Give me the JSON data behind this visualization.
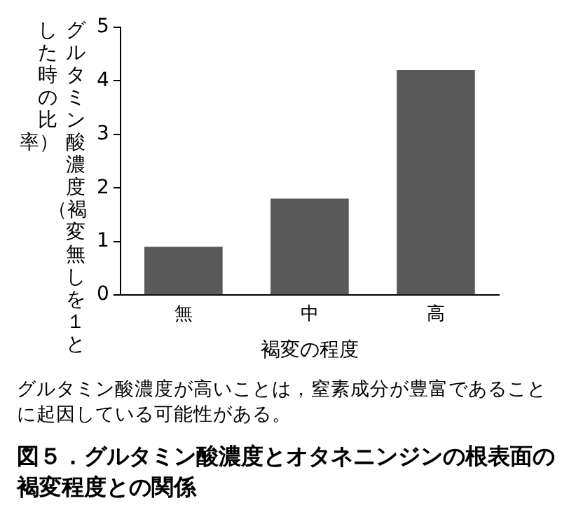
{
  "chart_data": {
    "type": "bar",
    "title": "図５．グルタミン酸濃度とオタネニンジンの根表面の褐変程度との関係",
    "xlabel": "褐変の程度",
    "ylabel": "グルタミン酸濃度（褐変無しを１とした時の比率）",
    "annotations": [
      "グルタミン酸濃度が高いことは，窒素成分が豊富であることに起因している可能性がある。"
    ],
    "categories": [
      "無",
      "中",
      "高"
    ],
    "values": [
      0.9,
      1.8,
      4.2
    ],
    "color": "#595959",
    "ylim": [
      0,
      5
    ],
    "yticks": [
      0,
      1,
      2,
      3,
      4,
      5
    ],
    "grid": false,
    "legend": false
  }
}
